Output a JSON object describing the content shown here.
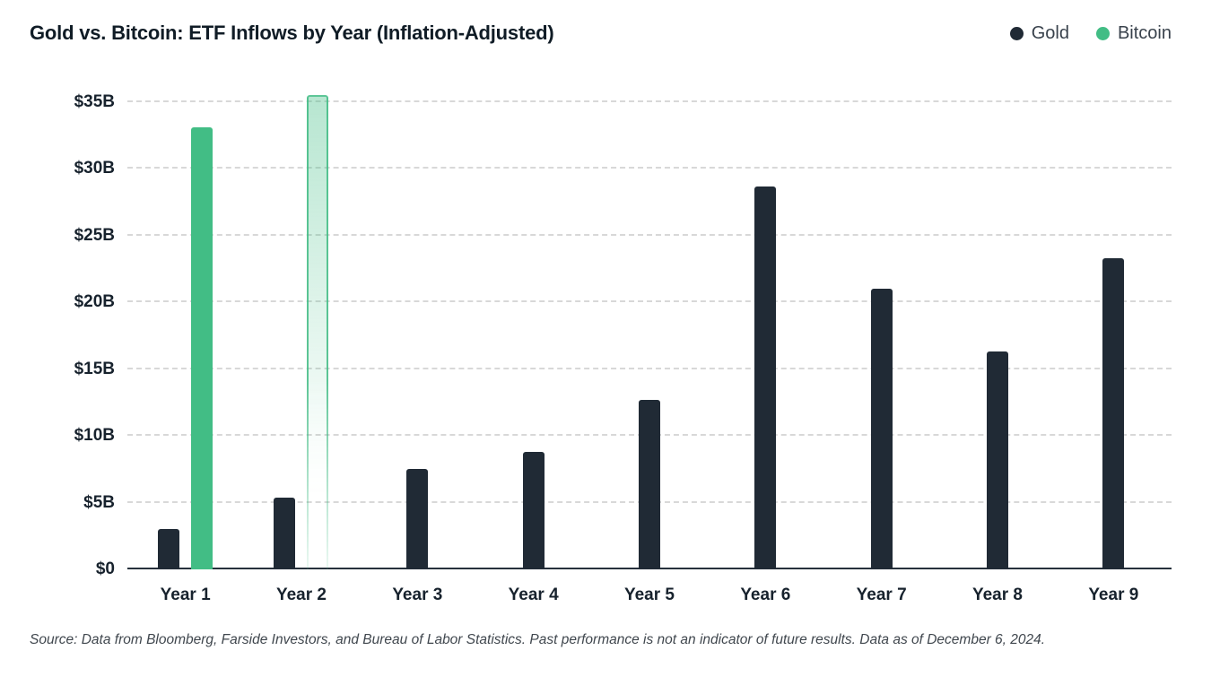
{
  "header": {
    "title": "Gold vs. Bitcoin: ETF Inflows by Year (Inflation-Adjusted)",
    "legend": [
      {
        "label": "Gold",
        "color": "#202a35"
      },
      {
        "label": "Bitcoin",
        "color": "#42bd85"
      }
    ]
  },
  "chart_data": {
    "type": "bar",
    "title": "Gold vs. Bitcoin: ETF Inflows by Year (Inflation-Adjusted)",
    "categories": [
      "Year 1",
      "Year 2",
      "Year 3",
      "Year 4",
      "Year 5",
      "Year 6",
      "Year 7",
      "Year 8",
      "Year 9"
    ],
    "series": [
      {
        "name": "Gold",
        "color": "#202a35",
        "values": [
          3.0,
          5.4,
          7.5,
          8.8,
          12.7,
          28.7,
          21.0,
          16.3,
          23.3
        ]
      },
      {
        "name": "Bitcoin",
        "color": "#42bd85",
        "values": [
          33.1,
          35.5,
          null,
          null,
          null,
          null,
          null,
          null,
          null
        ],
        "value_styles": [
          "solid",
          "projected",
          null,
          null,
          null,
          null,
          null,
          null,
          null
        ]
      }
    ],
    "yticks": [
      {
        "label": "$0",
        "value": 0
      },
      {
        "label": "$5B",
        "value": 5
      },
      {
        "label": "$10B",
        "value": 10
      },
      {
        "label": "$15B",
        "value": 15
      },
      {
        "label": "$20B",
        "value": 20
      },
      {
        "label": "$25B",
        "value": 25
      },
      {
        "label": "$30B",
        "value": 30
      },
      {
        "label": "$35B",
        "value": 35
      }
    ],
    "ylim": [
      0,
      35
    ],
    "unit": "USD billions",
    "grid": "dashed-horizontal",
    "legend_position": "top-right"
  },
  "footer": {
    "source": "Source: Data from Bloomberg, Farside Investors, and Bureau of Labor Statistics. Past performance is not an indicator of future results. Data as of December 6, 2024."
  }
}
